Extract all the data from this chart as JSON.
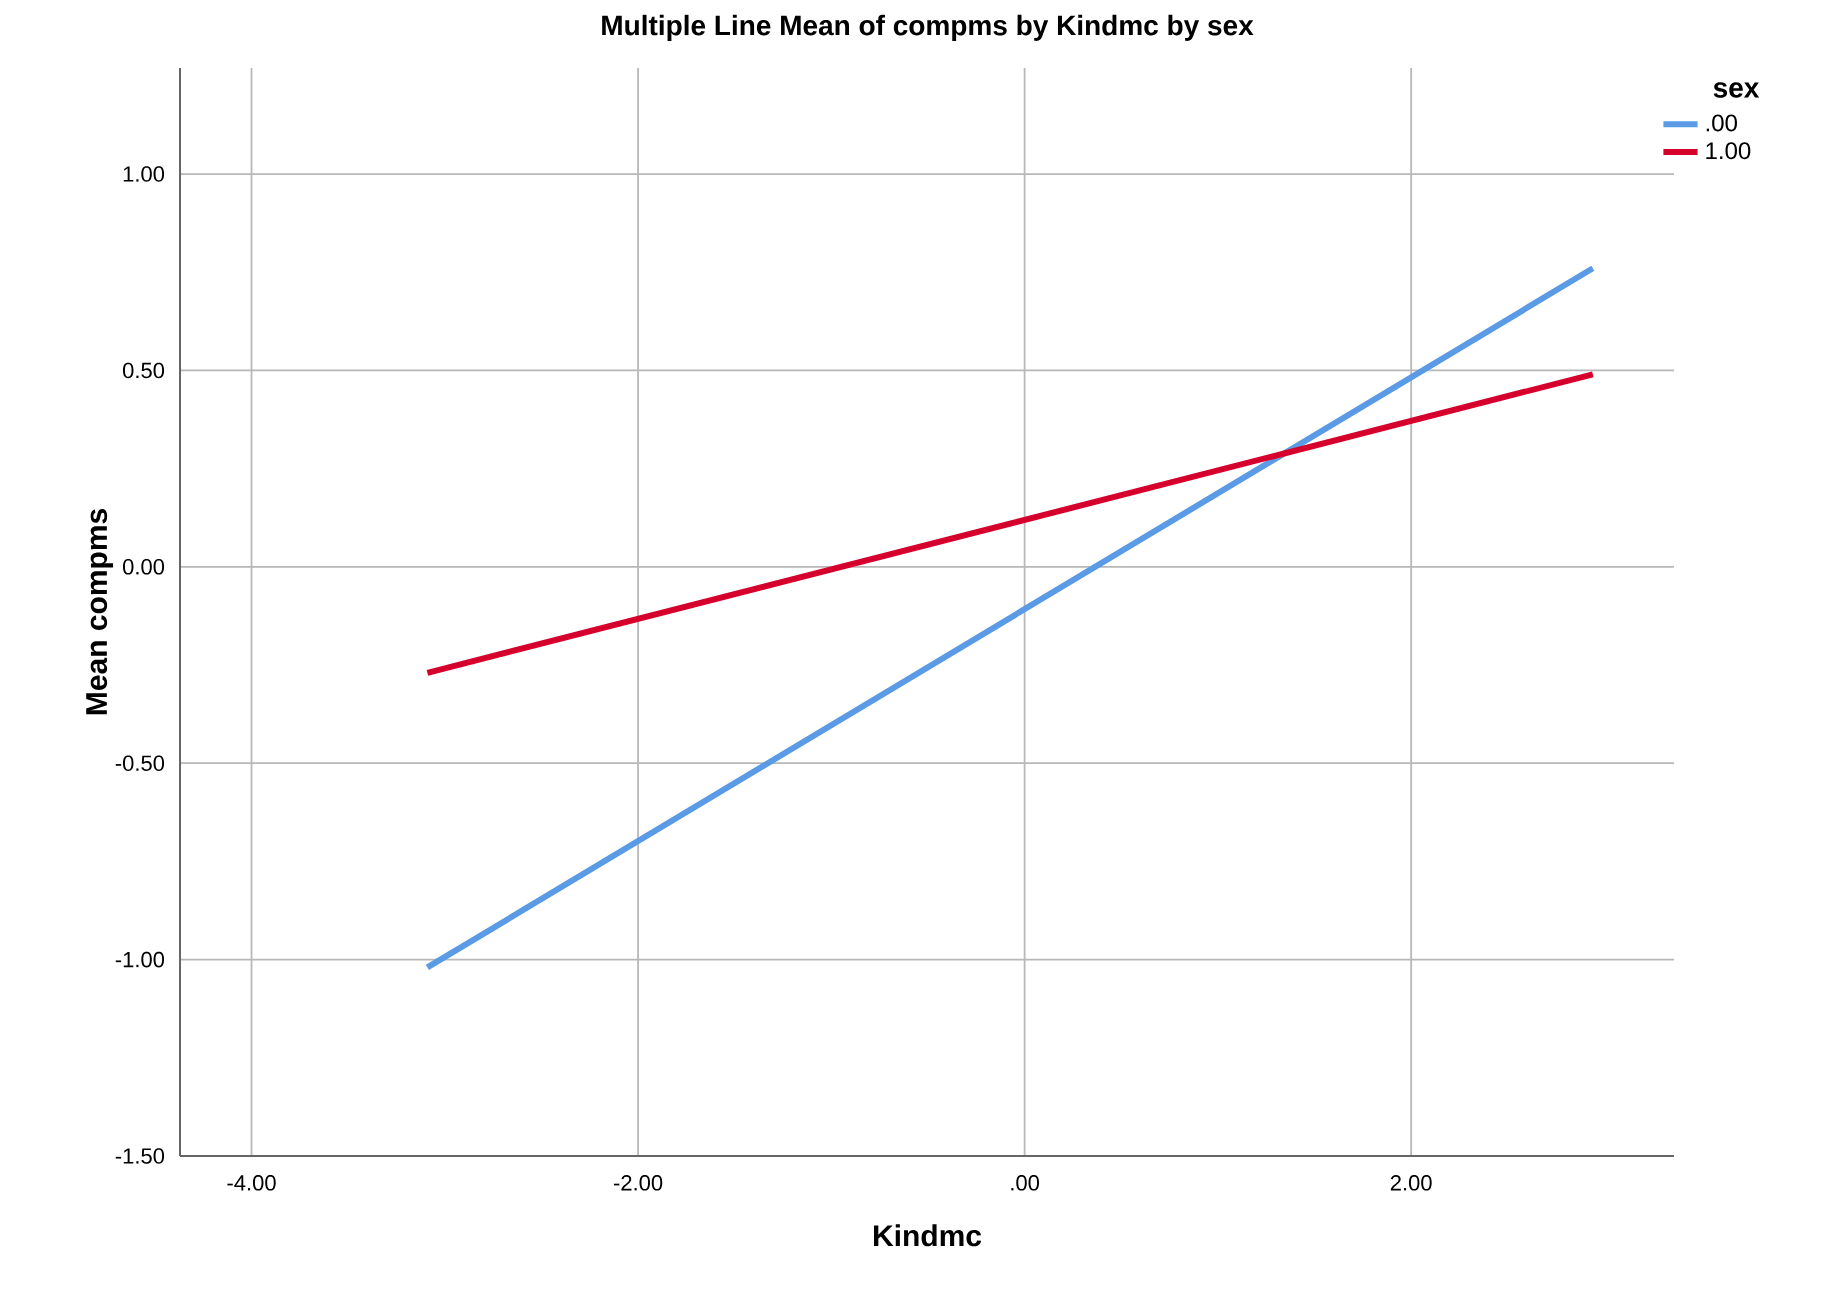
{
  "chart_data": {
    "type": "line",
    "title": "Multiple Line Mean of compms by Kindmc by sex",
    "xlabel": "Kindmc",
    "ylabel": "Mean compms",
    "legend_title": "sex",
    "x": [
      -3.09,
      2.94
    ],
    "series": [
      {
        "name": ".00",
        "color": "#5b9be6",
        "values": [
          -1.02,
          0.76
        ]
      },
      {
        "name": "1.00",
        "color": "#d6002d",
        "values": [
          -0.27,
          0.49
        ]
      }
    ],
    "xlim": [
      -4.37,
      3.36
    ],
    "ylim": [
      -1.5,
      1.27
    ],
    "xticks": [
      {
        "value": -4,
        "label": "-4.00"
      },
      {
        "value": -2,
        "label": "-2.00"
      },
      {
        "value": 0,
        "label": ".00"
      },
      {
        "value": 2,
        "label": "2.00"
      }
    ],
    "yticks": [
      {
        "value": -1.5,
        "label": "-1.50"
      },
      {
        "value": -1,
        "label": "-1.00"
      },
      {
        "value": -0.5,
        "label": "-0.50"
      },
      {
        "value": 0,
        "label": "0.00"
      },
      {
        "value": 0.5,
        "label": "0.50"
      },
      {
        "value": 1,
        "label": "1.00"
      }
    ],
    "grid": true,
    "legend": "top right",
    "marker": "none",
    "line_style": "solid"
  }
}
